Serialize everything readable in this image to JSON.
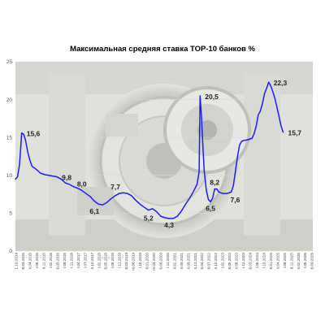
{
  "colors": {
    "line": "#1a1aff",
    "grid": "#d9d9d9",
    "vault_light": "#d4d4cc",
    "vault_dark": "#7a7a70"
  },
  "chart_data": {
    "type": "line",
    "title": "Максимальная средняя ставка ТОР-10 банков %",
    "xlabel": "",
    "ylabel": "",
    "ylim": [
      0,
      25
    ],
    "yticks": [
      0,
      5,
      10,
      15,
      20,
      25
    ],
    "grid": true,
    "legend": "none",
    "xlim": [
      "2014-10-01",
      "2026-09-09"
    ],
    "x_tick_labels": [
      "1.10.2014",
      "8.03.2015",
      "II.04.2015",
      "I.08.2015",
      "8.11.2015",
      "I.02.2016",
      "6.05.2016",
      "I.08.2016",
      "I.11.2016",
      "I.04.2017",
      "I.07.2017",
      "II.10.2017",
      "I.02.2018",
      "8.05.2018",
      "I.08.2018",
      "I.12.2018",
      "8.03.2019",
      "III.06.2019",
      "I.10.2019",
      "8.01.2020",
      "III.04.2020",
      "6.08.2020",
      "I.11.2020",
      "II.02.2021",
      "II.05.2021",
      "II.08.2021",
      "II.12.2021",
      "8.04.2022",
      "8.07.2022",
      "II.10.2022",
      "I.02.2023",
      "8.05.2023",
      "II.08.2023",
      "I.12.2023",
      "8.03.2024",
      "I.06.2024",
      "I.10.2024",
      "8.01.2025",
      "II.04.2025",
      "I.08.2025",
      "8.11.2025",
      "II.02.2026",
      "I.06.2026",
      "8.09.2026"
    ],
    "series": [
      {
        "points": [
          [
            "2014-10-01",
            9.5
          ],
          [
            "2014-11-01",
            9.8
          ],
          [
            "2014-12-01",
            11.5
          ],
          [
            "2015-01-01",
            15.6
          ],
          [
            "2015-02-01",
            15.4
          ],
          [
            "2015-03-01",
            14.5
          ],
          [
            "2015-04-01",
            13.0
          ],
          [
            "2015-05-01",
            12.0
          ],
          [
            "2015-06-01",
            11.2
          ],
          [
            "2015-08-01",
            10.8
          ],
          [
            "2015-10-01",
            10.3
          ],
          [
            "2015-12-01",
            10.1
          ],
          [
            "2016-02-01",
            10.0
          ],
          [
            "2016-04-01",
            9.9
          ],
          [
            "2016-06-01",
            9.8
          ],
          [
            "2016-08-01",
            9.5
          ],
          [
            "2016-10-01",
            9.0
          ],
          [
            "2016-12-01",
            8.8
          ],
          [
            "2017-02-01",
            8.5
          ],
          [
            "2017-04-01",
            8.3
          ],
          [
            "2017-06-01",
            8.0
          ],
          [
            "2017-08-01",
            7.6
          ],
          [
            "2017-10-01",
            7.2
          ],
          [
            "2017-12-01",
            6.6
          ],
          [
            "2018-02-01",
            6.2
          ],
          [
            "2018-04-01",
            6.1
          ],
          [
            "2018-06-01",
            6.4
          ],
          [
            "2018-08-01",
            6.9
          ],
          [
            "2018-10-01",
            7.3
          ],
          [
            "2018-12-01",
            7.6
          ],
          [
            "2019-02-01",
            7.7
          ],
          [
            "2019-04-01",
            7.6
          ],
          [
            "2019-06-01",
            7.3
          ],
          [
            "2019-08-01",
            6.7
          ],
          [
            "2019-10-01",
            6.2
          ],
          [
            "2019-12-01",
            5.8
          ],
          [
            "2020-02-01",
            5.4
          ],
          [
            "2020-04-01",
            5.6
          ],
          [
            "2020-06-01",
            5.2
          ],
          [
            "2020-08-01",
            4.6
          ],
          [
            "2020-10-01",
            4.4
          ],
          [
            "2020-12-01",
            4.3
          ],
          [
            "2021-02-01",
            4.3
          ],
          [
            "2021-04-01",
            4.6
          ],
          [
            "2021-06-01",
            5.3
          ],
          [
            "2021-08-01",
            6.2
          ],
          [
            "2021-10-01",
            7.0
          ],
          [
            "2021-12-01",
            8.0
          ],
          [
            "2022-01-15",
            8.8
          ],
          [
            "2022-02-15",
            10.5
          ],
          [
            "2022-03-01",
            20.5
          ],
          [
            "2022-03-20",
            18.0
          ],
          [
            "2022-04-10",
            14.0
          ],
          [
            "2022-05-01",
            10.5
          ],
          [
            "2022-06-01",
            8.0
          ],
          [
            "2022-07-01",
            6.8
          ],
          [
            "2022-08-01",
            6.5
          ],
          [
            "2022-09-01",
            7.0
          ],
          [
            "2022-10-01",
            8.2
          ],
          [
            "2022-11-01",
            8.2
          ],
          [
            "2022-12-01",
            7.8
          ],
          [
            "2023-02-01",
            7.6
          ],
          [
            "2023-04-01",
            7.6
          ],
          [
            "2023-06-01",
            7.8
          ],
          [
            "2023-07-01",
            8.6
          ],
          [
            "2023-08-01",
            10.5
          ],
          [
            "2023-09-01",
            12.5
          ],
          [
            "2023-10-01",
            14.0
          ],
          [
            "2023-11-01",
            14.5
          ],
          [
            "2023-12-01",
            14.6
          ],
          [
            "2024-02-01",
            14.7
          ],
          [
            "2024-04-01",
            14.9
          ],
          [
            "2024-05-01",
            15.5
          ],
          [
            "2024-06-01",
            16.5
          ],
          [
            "2024-07-01",
            18.0
          ],
          [
            "2024-08-01",
            18.5
          ],
          [
            "2024-09-01",
            19.5
          ],
          [
            "2024-10-01",
            20.8
          ],
          [
            "2024-11-01",
            21.5
          ],
          [
            "2024-12-01",
            22.3
          ],
          [
            "2025-01-01",
            21.8
          ],
          [
            "2025-02-01",
            21.0
          ],
          [
            "2025-03-01",
            20.2
          ],
          [
            "2025-04-01",
            19.0
          ],
          [
            "2025-05-01",
            17.8
          ],
          [
            "2025-06-01",
            16.5
          ],
          [
            "2025-07-01",
            15.7
          ]
        ]
      }
    ],
    "annotations": [
      {
        "text": "15,6",
        "x": "2015-01-01",
        "y": 15.6,
        "position": "right"
      },
      {
        "text": "9,8",
        "x": "2016-06-01",
        "y": 9.8,
        "position": "right"
      },
      {
        "text": "8,0",
        "x": "2017-06-01",
        "y": 8.0,
        "position": "above"
      },
      {
        "text": "6,1",
        "x": "2018-04-01",
        "y": 6.1,
        "position": "below-left"
      },
      {
        "text": "7,7",
        "x": "2019-02-01",
        "y": 7.7,
        "position": "above-left"
      },
      {
        "text": "5,2",
        "x": "2020-06-01",
        "y": 5.2,
        "position": "below-left"
      },
      {
        "text": "4,3",
        "x": "2020-12-01",
        "y": 4.3,
        "position": "below"
      },
      {
        "text": "20,5",
        "x": "2022-03-01",
        "y": 20.5,
        "position": "right"
      },
      {
        "text": "8,2",
        "x": "2022-10-01",
        "y": 8.2,
        "position": "above"
      },
      {
        "text": "6,5",
        "x": "2022-08-01",
        "y": 6.5,
        "position": "below"
      },
      {
        "text": "7,6",
        "x": "2023-04-01",
        "y": 7.6,
        "position": "below-right"
      },
      {
        "text": "22,3",
        "x": "2024-12-01",
        "y": 22.3,
        "position": "right"
      },
      {
        "text": "15,7",
        "x": "2025-07-01",
        "y": 15.7,
        "position": "right"
      }
    ]
  }
}
